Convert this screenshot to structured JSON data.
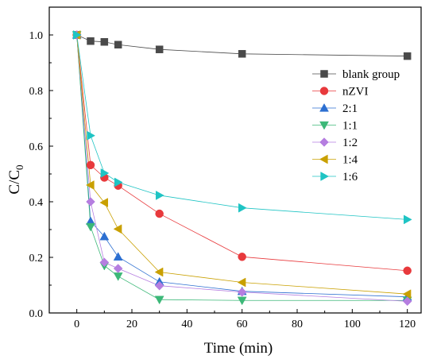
{
  "chart_data": {
    "type": "scatter",
    "xlabel": "Time (min)",
    "ylabel_main": "C/C",
    "ylabel_sub": "0",
    "xlim": [
      -10,
      125
    ],
    "ylim": [
      0,
      1.1
    ],
    "xticks": [
      0,
      20,
      40,
      60,
      80,
      100,
      120
    ],
    "yticks": [
      0.0,
      0.2,
      0.4,
      0.6,
      0.8,
      1.0
    ],
    "xtick_labels": [
      "0",
      "20",
      "40",
      "60",
      "80",
      "100",
      "120"
    ],
    "ytick_labels": [
      "0.0",
      "0.2",
      "0.4",
      "0.6",
      "0.8",
      "1.0"
    ],
    "legend_position": "right",
    "x": [
      0,
      5,
      10,
      15,
      30,
      60,
      120
    ],
    "series": [
      {
        "name": "blank group",
        "marker": "square",
        "color": "#4a4a4a",
        "values": [
          1.0,
          0.978,
          0.975,
          0.965,
          0.948,
          0.932,
          0.924
        ]
      },
      {
        "name": "nZVI",
        "marker": "circle",
        "color": "#e8393c",
        "values": [
          1.0,
          0.532,
          0.487,
          0.458,
          0.357,
          0.202,
          0.152
        ]
      },
      {
        "name": "2:1",
        "marker": "triangle-up",
        "color": "#2c6fd1",
        "values": [
          1.0,
          0.33,
          0.275,
          0.202,
          0.112,
          0.078,
          0.058
        ]
      },
      {
        "name": "1:1",
        "marker": "triangle-down",
        "color": "#3cb878",
        "values": [
          1.0,
          0.31,
          0.17,
          0.132,
          0.048,
          0.045,
          0.045
        ]
      },
      {
        "name": "1:2",
        "marker": "diamond",
        "color": "#b57ee0",
        "values": [
          1.0,
          0.4,
          0.182,
          0.16,
          0.098,
          0.075,
          0.042
        ]
      },
      {
        "name": "1:4",
        "marker": "triangle-left",
        "color": "#c9a000",
        "values": [
          1.0,
          0.46,
          0.397,
          0.302,
          0.147,
          0.11,
          0.068
        ]
      },
      {
        "name": "1:6",
        "marker": "triangle-right",
        "color": "#1fc4c4",
        "values": [
          1.0,
          0.638,
          0.503,
          0.47,
          0.423,
          0.378,
          0.336
        ]
      }
    ]
  }
}
